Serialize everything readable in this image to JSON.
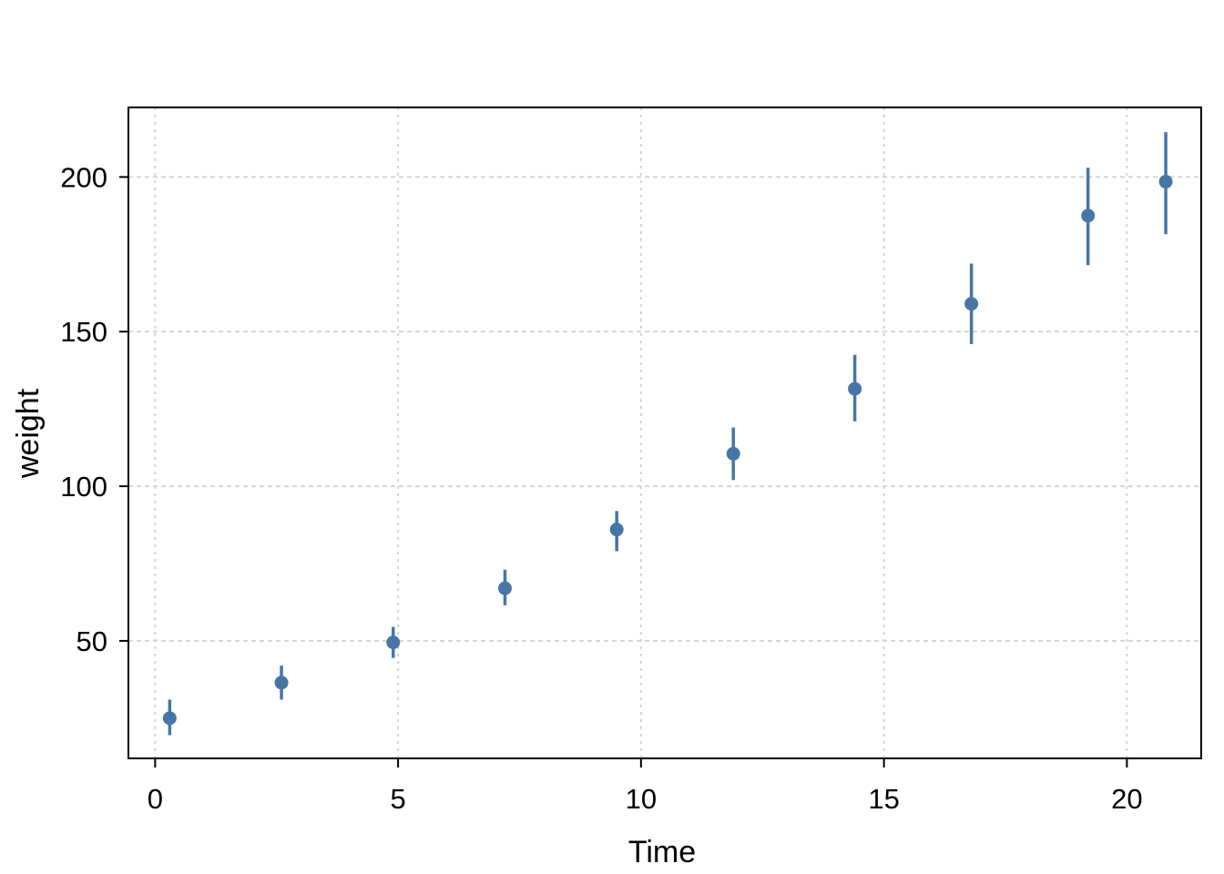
{
  "chart_data": {
    "type": "scatter",
    "title": "",
    "xlabel": "Time",
    "ylabel": "weight",
    "x": [
      0.3,
      2.6,
      4.9,
      7.2,
      9.5,
      11.9,
      14.4,
      16.8,
      19.2,
      20.8
    ],
    "y": [
      25,
      36.5,
      49.5,
      67,
      86,
      110.5,
      131.5,
      159,
      187.5,
      198.5
    ],
    "ymin": [
      19.5,
      31,
      44.5,
      61.5,
      79,
      102,
      121,
      146,
      171.5,
      181.5
    ],
    "ymax": [
      31,
      42,
      54.5,
      73,
      92,
      119,
      142.5,
      172,
      203,
      214.5
    ],
    "error_bars": true,
    "xticks": [
      0,
      5,
      10,
      15,
      20
    ],
    "yticks": [
      50,
      100,
      150,
      200
    ],
    "xtick_labels": [
      "0",
      "5",
      "10",
      "15",
      "20"
    ],
    "ytick_labels": [
      "50",
      "100",
      "150",
      "200"
    ],
    "xlim": [
      -0.55,
      21.53
    ],
    "ylim": [
      12,
      222.5
    ],
    "grid": "dashed",
    "legend": "none",
    "colors": {
      "point": "#4776a6",
      "error_bar": "#4776a6",
      "grid": "#d4d4d4",
      "panel_border": "#000000",
      "tick": "#000000",
      "text": "#000000",
      "background": "#ffffff"
    }
  }
}
